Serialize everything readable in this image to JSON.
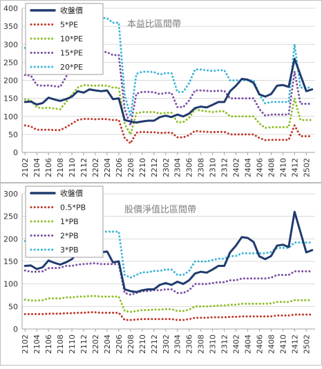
{
  "chart_data": [
    {
      "type": "line",
      "title": "本益比區間帶",
      "ylim": [
        0,
        400
      ],
      "yticks": [
        0,
        50,
        100,
        150,
        200,
        250,
        300,
        350,
        400
      ],
      "categories": [
        "2102",
        "2103",
        "2104",
        "2105",
        "2106",
        "2107",
        "2108",
        "2109",
        "2110",
        "2111",
        "2112",
        "2201",
        "2202",
        "2203",
        "2204",
        "2205",
        "2206",
        "2207",
        "2208",
        "2209",
        "2210",
        "2211",
        "2212",
        "2301",
        "2302",
        "2303",
        "2304",
        "2305",
        "2306",
        "2307",
        "2308",
        "2309",
        "2310",
        "2311",
        "2312",
        "2401",
        "2402",
        "2403",
        "2404",
        "2405",
        "2406",
        "2407",
        "2408",
        "2409",
        "2410",
        "2411",
        "2412",
        "2501",
        "2502",
        "2503"
      ],
      "tick_labels": [
        "2102",
        "2104",
        "2106",
        "2108",
        "2110",
        "2112",
        "2202",
        "2204",
        "2206",
        "2208",
        "2210",
        "2212",
        "2302",
        "2304",
        "2306",
        "2308",
        "2310",
        "2312",
        "2402",
        "2404",
        "2406",
        "2408",
        "2410",
        "2412",
        "2502"
      ],
      "grid": true,
      "legend_position": "top-left",
      "series": [
        {
          "name": "收盤價",
          "color": "#1f3a6e",
          "style": "solid",
          "values": [
            140,
            141,
            133,
            137,
            152,
            147,
            143,
            148,
            155,
            170,
            166,
            175,
            172,
            170,
            172,
            148,
            150,
            90,
            86,
            83,
            86,
            88,
            88,
            98,
            102,
            98,
            105,
            100,
            108,
            123,
            127,
            125,
            132,
            140,
            140,
            170,
            185,
            204,
            202,
            193,
            161,
            155,
            162,
            185,
            187,
            182,
            260,
            215,
            170,
            175
          ]
        },
        {
          "name": "5*PE",
          "color": "#c0392b",
          "style": "dotted",
          "values": [
            75,
            72,
            63,
            63,
            63,
            62,
            62,
            70,
            80,
            90,
            93,
            93,
            92,
            93,
            92,
            90,
            90,
            40,
            25,
            55,
            57,
            56,
            56,
            54,
            55,
            55,
            42,
            42,
            48,
            60,
            58,
            57,
            56,
            57,
            57,
            50,
            50,
            50,
            50,
            50,
            40,
            34,
            35,
            35,
            35,
            35,
            75,
            45,
            45,
            45
          ]
        },
        {
          "name": "10*PE",
          "color": "#8cbf26",
          "style": "dotted",
          "values": [
            147,
            145,
            125,
            123,
            124,
            122,
            120,
            140,
            160,
            180,
            187,
            186,
            185,
            186,
            185,
            180,
            180,
            80,
            50,
            109,
            112,
            112,
            112,
            108,
            110,
            110,
            84,
            84,
            96,
            120,
            116,
            114,
            112,
            114,
            114,
            100,
            100,
            100,
            100,
            100,
            80,
            68,
            70,
            70,
            70,
            70,
            150,
            90,
            90,
            90
          ]
        },
        {
          "name": "15*PE",
          "color": "#7a4fa3",
          "style": "dotted",
          "values": [
            215,
            213,
            187,
            185,
            186,
            184,
            182,
            210,
            240,
            270,
            280,
            280,
            278,
            280,
            278,
            270,
            270,
            120,
            75,
            163,
            168,
            168,
            167,
            162,
            165,
            165,
            126,
            126,
            144,
            172,
            172,
            171,
            170,
            171,
            171,
            150,
            150,
            150,
            150,
            150,
            120,
            102,
            105,
            105,
            105,
            105,
            225,
            135,
            135,
            135
          ]
        },
        {
          "name": "20*PE",
          "color": "#3ab5d8",
          "style": "dotted",
          "values": [
            290,
            285,
            250,
            247,
            248,
            246,
            243,
            290,
            330,
            370,
            375,
            375,
            372,
            374,
            372,
            360,
            360,
            160,
            100,
            218,
            224,
            224,
            223,
            216,
            220,
            220,
            168,
            168,
            192,
            230,
            230,
            228,
            226,
            228,
            228,
            200,
            200,
            200,
            200,
            200,
            160,
            136,
            140,
            140,
            140,
            140,
            300,
            180,
            180,
            180
          ]
        }
      ]
    },
    {
      "type": "line",
      "title": "股價淨值比區間帶",
      "ylim": [
        0,
        300
      ],
      "yticks": [
        0,
        50,
        100,
        150,
        200,
        250,
        300
      ],
      "categories": [
        "2102",
        "2103",
        "2104",
        "2105",
        "2106",
        "2107",
        "2108",
        "2109",
        "2110",
        "2111",
        "2112",
        "2201",
        "2202",
        "2203",
        "2204",
        "2205",
        "2206",
        "2207",
        "2208",
        "2209",
        "2210",
        "2211",
        "2212",
        "2301",
        "2302",
        "2303",
        "2304",
        "2305",
        "2306",
        "2307",
        "2308",
        "2309",
        "2310",
        "2311",
        "2312",
        "2401",
        "2402",
        "2403",
        "2404",
        "2405",
        "2406",
        "2407",
        "2408",
        "2409",
        "2410",
        "2411",
        "2412",
        "2501",
        "2502",
        "2503"
      ],
      "tick_labels": [
        "2102",
        "2104",
        "2106",
        "2108",
        "2110",
        "2112",
        "2202",
        "2204",
        "2206",
        "2208",
        "2210",
        "2212",
        "2302",
        "2304",
        "2306",
        "2308",
        "2310",
        "2312",
        "2402",
        "2404",
        "2406",
        "2408",
        "2410",
        "2412",
        "2502"
      ],
      "grid": true,
      "legend_position": "top-left",
      "series": [
        {
          "name": "收盤價",
          "color": "#1f3a6e",
          "style": "solid",
          "values": [
            140,
            141,
            133,
            137,
            152,
            147,
            143,
            148,
            155,
            170,
            166,
            175,
            172,
            170,
            172,
            148,
            150,
            88,
            84,
            82,
            86,
            88,
            88,
            98,
            102,
            98,
            105,
            100,
            108,
            123,
            127,
            125,
            132,
            140,
            140,
            170,
            185,
            204,
            202,
            193,
            161,
            155,
            162,
            185,
            187,
            182,
            260,
            215,
            170,
            175
          ]
        },
        {
          "name": "0.5*PB",
          "color": "#c0392b",
          "style": "dotted",
          "values": [
            33,
            33,
            33,
            33,
            34,
            34,
            34,
            35,
            35,
            36,
            36,
            37,
            37,
            36,
            36,
            36,
            36,
            20,
            20,
            21,
            22,
            22,
            22,
            22,
            22,
            22,
            20,
            20,
            22,
            25,
            25,
            25,
            26,
            26,
            26,
            27,
            27,
            28,
            28,
            28,
            28,
            28,
            28,
            30,
            30,
            30,
            32,
            32,
            32,
            32
          ]
        },
        {
          "name": "1*PB",
          "color": "#8cbf26",
          "style": "dotted",
          "values": [
            65,
            63,
            63,
            64,
            68,
            68,
            68,
            70,
            70,
            72,
            72,
            73,
            73,
            72,
            72,
            72,
            72,
            40,
            38,
            40,
            42,
            42,
            43,
            43,
            44,
            44,
            40,
            40,
            43,
            50,
            50,
            50,
            51,
            52,
            52,
            54,
            54,
            56,
            56,
            56,
            56,
            56,
            57,
            60,
            60,
            60,
            64,
            64,
            64,
            64
          ]
        },
        {
          "name": "2*PB",
          "color": "#7a4fa3",
          "style": "dotted",
          "values": [
            130,
            127,
            127,
            128,
            135,
            135,
            136,
            140,
            140,
            143,
            144,
            145,
            146,
            144,
            144,
            144,
            144,
            80,
            76,
            80,
            84,
            84,
            86,
            86,
            88,
            88,
            80,
            80,
            86,
            100,
            100,
            100,
            102,
            104,
            104,
            108,
            108,
            112,
            112,
            112,
            112,
            112,
            114,
            120,
            120,
            120,
            128,
            128,
            128,
            128
          ]
        },
        {
          "name": "3*PB",
          "color": "#3ab5d8",
          "style": "dotted",
          "values": [
            195,
            190,
            190,
            192,
            203,
            203,
            204,
            210,
            210,
            215,
            216,
            218,
            219,
            216,
            216,
            216,
            216,
            120,
            114,
            120,
            126,
            126,
            129,
            129,
            132,
            132,
            120,
            120,
            129,
            150,
            150,
            150,
            153,
            156,
            156,
            162,
            162,
            168,
            168,
            168,
            168,
            168,
            171,
            180,
            180,
            180,
            192,
            192,
            192,
            192
          ]
        }
      ]
    }
  ]
}
